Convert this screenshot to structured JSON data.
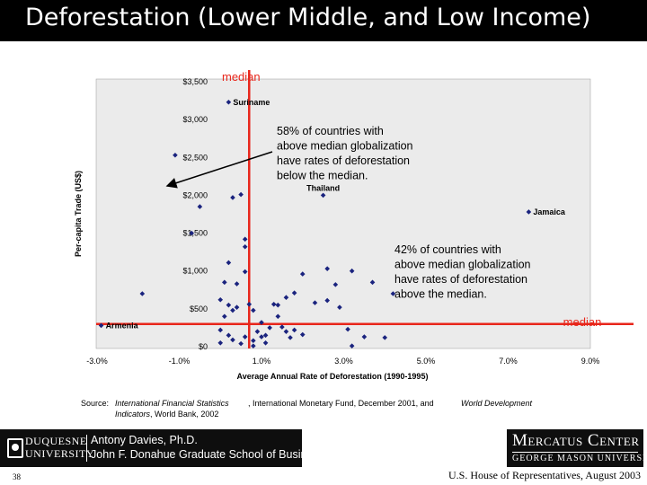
{
  "slide": {
    "title": "Deforestation (Lower Middle, and Low Income)",
    "page_number": "38",
    "footer_right_text": "U.S. House of Representatives, August 2003"
  },
  "source": {
    "label": "Source:",
    "line1": "International Financial Statistics",
    "line2_italic": "Indicators",
    "line2_rest": ", World Bank, 2002",
    "part2": ", International Monetary Fund, December 2001, and",
    "part3": "World Development"
  },
  "footer": {
    "university_line1": "DUQUESNE",
    "university_line2": "UNIVERSITY",
    "author_line1": "Antony Davies, Ph.D.",
    "author_line2": "John F. Donahue Graduate School of Business",
    "center_name": "Mercatus Center",
    "center_sub": "GEORGE MASON UNIVERSITY"
  },
  "chart_data": {
    "type": "scatter",
    "xlabel": "Average Annual Rate of Deforestation (1990-1995)",
    "ylabel": "Per-capita Trade (US$)",
    "xlim": [
      -3.0,
      9.0
    ],
    "ylim": [
      0,
      3500
    ],
    "x_ticks": [
      -3,
      -1,
      1,
      3,
      5,
      7,
      9
    ],
    "x_tick_labels": [
      "-3.0%",
      "-1.0%",
      "1.0%",
      "3.0%",
      "5.0%",
      "7.0%",
      "9.0%"
    ],
    "y_ticks": [
      0,
      500,
      1000,
      1500,
      2000,
      2500,
      3000,
      3500
    ],
    "y_tick_labels": [
      "$0",
      "$500",
      "$1,000",
      "$1,500",
      "$2,000",
      "$2,500",
      "$3,000",
      "$3,500"
    ],
    "marker_color": "#1a237e",
    "median_line_color": "#e8261b",
    "plot_background": "#ebebeb",
    "median_x": 0.7,
    "median_y": 300,
    "median_labels": {
      "vertical": "median",
      "horizontal": "median"
    },
    "labeled_points": [
      {
        "name": "Suriname",
        "x": 0.2,
        "y": 3230
      },
      {
        "name": "Thailand",
        "x": 2.5,
        "y": 2000
      },
      {
        "name": "Jamaica",
        "x": 7.5,
        "y": 1780
      },
      {
        "name": "Armenia",
        "x": -2.9,
        "y": 280
      }
    ],
    "points": [
      {
        "x": -1.1,
        "y": 2530
      },
      {
        "x": -0.5,
        "y": 1850
      },
      {
        "x": -0.7,
        "y": 1500
      },
      {
        "x": -1.9,
        "y": 700
      },
      {
        "x": 0.3,
        "y": 1970
      },
      {
        "x": 0.5,
        "y": 2010
      },
      {
        "x": 0.6,
        "y": 1420
      },
      {
        "x": 0.6,
        "y": 1320
      },
      {
        "x": 0.2,
        "y": 1110
      },
      {
        "x": 0.6,
        "y": 990
      },
      {
        "x": 0.1,
        "y": 850
      },
      {
        "x": 0.4,
        "y": 830
      },
      {
        "x": 0.0,
        "y": 620
      },
      {
        "x": 0.2,
        "y": 550
      },
      {
        "x": 0.3,
        "y": 480
      },
      {
        "x": 0.1,
        "y": 400
      },
      {
        "x": 0.0,
        "y": 220
      },
      {
        "x": 0.2,
        "y": 150
      },
      {
        "x": 0.3,
        "y": 90
      },
      {
        "x": 0.5,
        "y": 40
      },
      {
        "x": 0.0,
        "y": 50
      },
      {
        "x": 0.4,
        "y": 520
      },
      {
        "x": 0.7,
        "y": 560
      },
      {
        "x": 0.8,
        "y": 480
      },
      {
        "x": 1.0,
        "y": 320
      },
      {
        "x": 0.9,
        "y": 200
      },
      {
        "x": 1.0,
        "y": 130
      },
      {
        "x": 0.8,
        "y": 80
      },
      {
        "x": 1.1,
        "y": 150
      },
      {
        "x": 1.2,
        "y": 250
      },
      {
        "x": 1.4,
        "y": 400
      },
      {
        "x": 1.5,
        "y": 260
      },
      {
        "x": 1.6,
        "y": 200
      },
      {
        "x": 1.7,
        "y": 120
      },
      {
        "x": 1.8,
        "y": 220
      },
      {
        "x": 2.0,
        "y": 160
      },
      {
        "x": 1.3,
        "y": 560
      },
      {
        "x": 1.6,
        "y": 650
      },
      {
        "x": 1.4,
        "y": 550
      },
      {
        "x": 1.8,
        "y": 710
      },
      {
        "x": 2.0,
        "y": 960
      },
      {
        "x": 2.3,
        "y": 580
      },
      {
        "x": 2.6,
        "y": 610
      },
      {
        "x": 2.9,
        "y": 520
      },
      {
        "x": 3.1,
        "y": 230
      },
      {
        "x": 3.5,
        "y": 130
      },
      {
        "x": 2.8,
        "y": 820
      },
      {
        "x": 2.6,
        "y": 1030
      },
      {
        "x": 3.2,
        "y": 1000
      },
      {
        "x": 3.7,
        "y": 850
      },
      {
        "x": 4.2,
        "y": 700
      },
      {
        "x": 4.0,
        "y": 120
      },
      {
        "x": 3.2,
        "y": 10
      },
      {
        "x": 0.6,
        "y": 130
      },
      {
        "x": 1.1,
        "y": 50
      },
      {
        "x": 0.8,
        "y": 10
      }
    ],
    "annotations": [
      {
        "text_lines": [
          "58% of countries with",
          "above median globalization",
          "have rates of deforestation",
          "below the median."
        ]
      },
      {
        "text_lines": [
          "42% of countries with",
          "above median globalization",
          "have rates of deforestation",
          "above the median."
        ]
      }
    ]
  }
}
